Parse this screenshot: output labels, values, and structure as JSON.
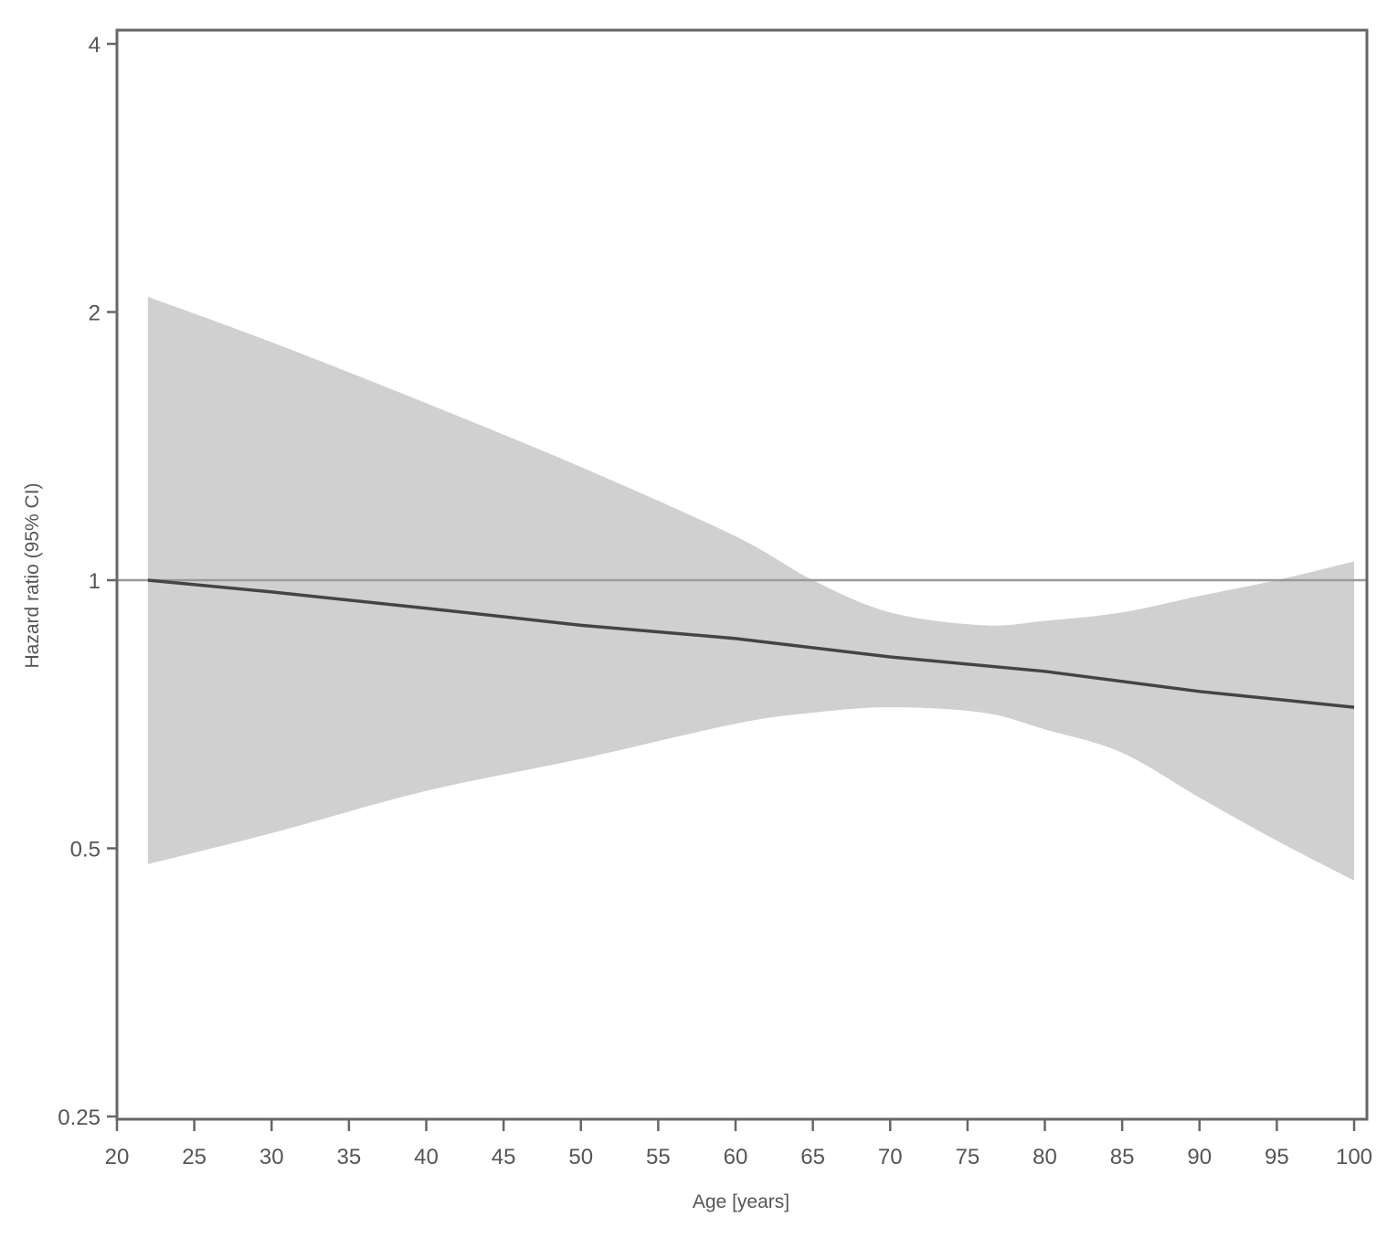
{
  "chart_data": {
    "type": "line",
    "title": "",
    "xlabel": "Age [years]",
    "ylabel": "Hazard ratio (95% CI)",
    "y_scale": "log2",
    "xlim": [
      20,
      100
    ],
    "ylim": [
      0.25,
      4
    ],
    "x_ticks": [
      20,
      25,
      30,
      35,
      40,
      45,
      50,
      55,
      60,
      65,
      70,
      75,
      80,
      85,
      90,
      95,
      100
    ],
    "x_tick_labels": [
      "20",
      "25",
      "30",
      "35",
      "40",
      "45",
      "50",
      "55",
      "60",
      "65",
      "70",
      "75",
      "80",
      "85",
      "90",
      "95",
      "100"
    ],
    "y_ticks": [
      0.25,
      0.5,
      1,
      2,
      4
    ],
    "y_tick_labels": [
      "0.25",
      "0.5",
      "1",
      "2",
      "4"
    ],
    "grid": false,
    "legend": null,
    "reference_line": {
      "y": 1,
      "color": "#9a9a9a"
    },
    "series": [
      {
        "name": "Hazard ratio",
        "kind": "line",
        "color": "#444444",
        "x": [
          22,
          30,
          40,
          50,
          60,
          70,
          80,
          90,
          100
        ],
        "y": [
          1.0,
          0.97,
          0.93,
          0.89,
          0.86,
          0.82,
          0.79,
          0.75,
          0.72
        ]
      },
      {
        "name": "95% CI",
        "kind": "band",
        "color": "#d0d0d0",
        "x": [
          22,
          30,
          40,
          50,
          60,
          65,
          70,
          76,
          80,
          85,
          90,
          95,
          100
        ],
        "upper": [
          2.08,
          1.85,
          1.58,
          1.34,
          1.12,
          1.0,
          0.92,
          0.89,
          0.9,
          0.92,
          0.96,
          1.0,
          1.05
        ],
        "lower": [
          0.48,
          0.52,
          0.58,
          0.63,
          0.69,
          0.71,
          0.72,
          0.71,
          0.68,
          0.64,
          0.57,
          0.51,
          0.46
        ]
      }
    ]
  },
  "axes": {
    "xlabel": "Age [years]",
    "ylabel": "Hazard ratio (95% CI)"
  }
}
